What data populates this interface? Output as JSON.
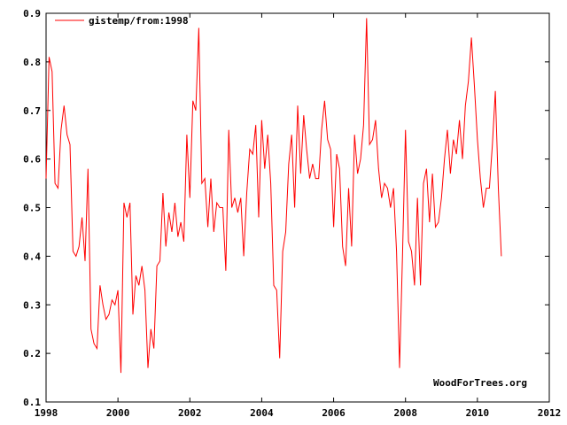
{
  "chart_data": {
    "type": "line",
    "title": "",
    "xlabel": "",
    "ylabel": "",
    "xlim": [
      1998,
      2012
    ],
    "ylim": [
      0.1,
      0.9
    ],
    "grid": false,
    "legend_position": "top-left",
    "x_ticks": [
      "1998",
      "2000",
      "2002",
      "2004",
      "2006",
      "2008",
      "2010",
      "2012"
    ],
    "y_ticks": [
      "0.1",
      "0.2",
      "0.3",
      "0.4",
      "0.5",
      "0.6",
      "0.7",
      "0.8",
      "0.9"
    ],
    "watermark": "WoodForTrees.org",
    "series": [
      {
        "name": "gistemp/from:1998",
        "color": "#ff0000",
        "x_start": 1998.0,
        "x_step": 0.083333,
        "values": [
          0.56,
          0.81,
          0.78,
          0.55,
          0.54,
          0.66,
          0.71,
          0.65,
          0.63,
          0.41,
          0.4,
          0.42,
          0.48,
          0.39,
          0.58,
          0.25,
          0.22,
          0.21,
          0.34,
          0.3,
          0.27,
          0.28,
          0.31,
          0.3,
          0.33,
          0.16,
          0.51,
          0.48,
          0.51,
          0.28,
          0.36,
          0.34,
          0.38,
          0.33,
          0.17,
          0.25,
          0.21,
          0.38,
          0.39,
          0.53,
          0.42,
          0.49,
          0.45,
          0.51,
          0.44,
          0.47,
          0.43,
          0.65,
          0.52,
          0.72,
          0.7,
          0.87,
          0.55,
          0.56,
          0.46,
          0.56,
          0.45,
          0.51,
          0.5,
          0.5,
          0.37,
          0.66,
          0.5,
          0.52,
          0.49,
          0.52,
          0.4,
          0.53,
          0.62,
          0.61,
          0.67,
          0.48,
          0.68,
          0.58,
          0.65,
          0.55,
          0.34,
          0.33,
          0.19,
          0.41,
          0.45,
          0.59,
          0.65,
          0.5,
          0.71,
          0.57,
          0.69,
          0.62,
          0.56,
          0.59,
          0.56,
          0.56,
          0.66,
          0.72,
          0.64,
          0.62,
          0.46,
          0.61,
          0.58,
          0.42,
          0.38,
          0.54,
          0.42,
          0.65,
          0.57,
          0.6,
          0.67,
          0.89,
          0.63,
          0.64,
          0.68,
          0.58,
          0.52,
          0.55,
          0.54,
          0.5,
          0.54,
          0.41,
          0.17,
          0.4,
          0.66,
          0.43,
          0.41,
          0.34,
          0.52,
          0.34,
          0.55,
          0.58,
          0.47,
          0.57,
          0.46,
          0.47,
          0.52,
          0.6,
          0.66,
          0.57,
          0.64,
          0.61,
          0.68,
          0.6,
          0.71,
          0.76,
          0.85,
          0.75,
          0.64,
          0.56,
          0.5,
          0.54,
          0.54,
          0.63,
          0.74,
          0.54,
          0.4
        ]
      }
    ]
  }
}
